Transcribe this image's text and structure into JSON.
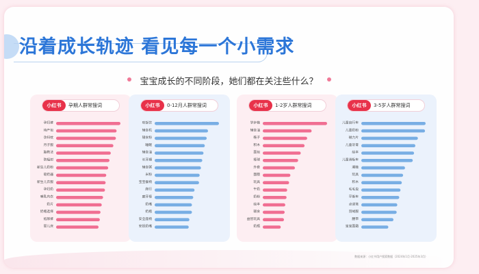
{
  "header": {
    "title": "沿着成长轨迹 看见每一个小需求",
    "subtitle": "宝宝成长的不同阶段，她们都在关注些什么？"
  },
  "footer": {
    "source": "数据来源：小红书用户搜索数据（2024年1月-2025年3月）"
  },
  "colors": {
    "pink": "#f06e92",
    "blue": "#78aee4",
    "badge": "#e8324a",
    "title": "#2c76d8"
  },
  "chart_data": [
    {
      "type": "bar",
      "badge": "小红书",
      "title": "孕期人群常搜词",
      "categories": [
        "孕妇裤",
        "待产包",
        "孕妇枕",
        "月子服",
        "胎教法",
        "防辐射",
        "新生儿奶粉",
        "吸奶器",
        "新生儿衣服",
        "孕妇奶",
        "哺乳内衣",
        "奶片",
        "奶瓶选择",
        "纸尿裤",
        "婴儿床"
      ],
      "values": [
        100,
        94,
        93,
        89,
        85,
        83,
        81,
        78,
        77,
        76,
        73,
        71,
        69,
        68,
        66
      ]
    },
    {
      "type": "bar",
      "badge": "小红书",
      "title": "0-12月人群常搜词",
      "categories": [
        "吃饭饮",
        "辅食机",
        "辅食粉",
        "睡眠",
        "辅食油",
        "长牙期",
        "辅食粥",
        "米粉",
        "宝宝餐椅",
        "爬行",
        "磨牙棒",
        "奶嘴",
        "奶瓶",
        "安全座椅",
        "安抚奶嘴"
      ],
      "values": [
        100,
        83,
        81,
        78,
        76,
        74,
        72,
        70,
        69,
        62,
        60,
        58,
        58,
        54,
        53
      ]
    },
    {
      "type": "bar",
      "badge": "小红书",
      "title": "1-2岁人群常搜词",
      "categories": [
        "学步鞋",
        "辅食油",
        "鞋子",
        "积木",
        "面包",
        "棒球",
        "外套",
        "面膜",
        "玩具",
        "午奶",
        "奶粉",
        "绘本",
        "辅食",
        "益智玩具",
        "奶瓶"
      ],
      "values": [
        100,
        76,
        69,
        65,
        59,
        55,
        50,
        43,
        41,
        38,
        37,
        35,
        34,
        33,
        28
      ]
    },
    {
      "type": "bar",
      "badge": "小红书",
      "title": "3-5岁人群常搜词",
      "categories": [
        "儿童自行车",
        "儿童奶粉",
        "磁力片",
        "儿童牙膏",
        "绘本",
        "儿童滑板车",
        "潮鞋",
        "玩具",
        "积木",
        "毛毛虫",
        "平衡车",
        "点读笔",
        "羽绒服",
        "腰带",
        "宝宝面霜"
      ],
      "values": [
        100,
        99,
        88,
        84,
        82,
        80,
        68,
        65,
        63,
        61,
        59,
        56,
        55,
        50,
        42
      ]
    }
  ]
}
